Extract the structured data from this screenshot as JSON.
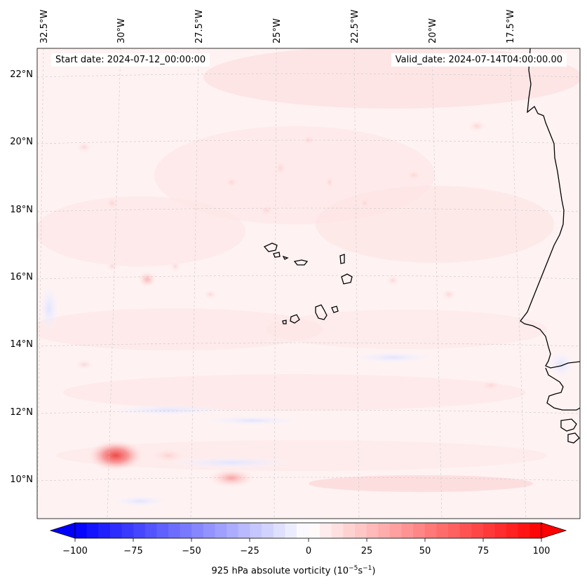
{
  "map": {
    "title_start": "Start date: 2024-07-12_00:00:00",
    "title_valid": "Valid_date: 2024-07-14T04:00:00.00",
    "longitude_labels": [
      "32.5°W",
      "30°W",
      "27.5°W",
      "25°W",
      "22.5°W",
      "20°W",
      "17.5°W"
    ],
    "latitude_labels": [
      "22°N",
      "20°N",
      "18°N",
      "16°N",
      "14°N",
      "12°N",
      "10°N"
    ],
    "features": [
      "Cabo Verde islands",
      "West African coastline"
    ]
  },
  "colorbar": {
    "label_prefix": "925 hPa absolute vorticity (10",
    "label_exp1": "−5",
    "label_mid": "s",
    "label_exp2": "−1",
    "label_suffix": ")",
    "ticks": [
      "−100",
      "−75",
      "−50",
      "−25",
      "0",
      "25",
      "50",
      "75",
      "100"
    ],
    "color_min": "#0000ff",
    "color_mid": "#ffffff",
    "color_max": "#ff0000"
  }
}
